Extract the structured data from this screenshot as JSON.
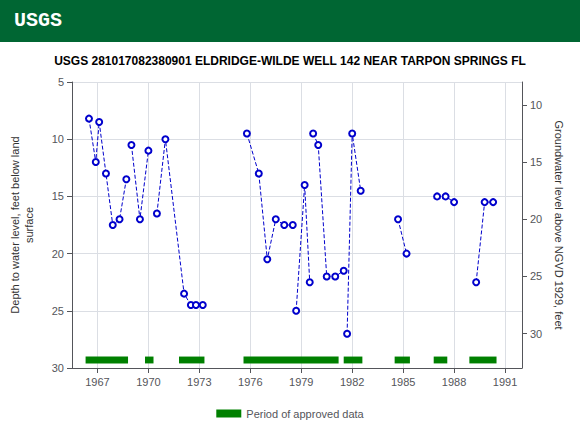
{
  "chart_data": {
    "type": "line",
    "title": "USGS 281017082380901 ELDRIDGE-WILDE WELL 142 NEAR TARPON SPRINGS FL",
    "annotations": [
      {
        "text": "USGS",
        "color": "#006633"
      }
    ],
    "ylabel": "Depth to water level, feet below land\nsurface",
    "y2label": "Groundwater level above NGVD 1929, feet",
    "xlim": [
      1965.5,
      1992
    ],
    "xticks": [
      1967,
      1970,
      1973,
      1976,
      1979,
      1982,
      1985,
      1988,
      1991
    ],
    "ylim": [
      30,
      5
    ],
    "yticks": [
      5,
      10,
      15,
      20,
      25,
      30
    ],
    "y2lim": [
      33,
      8
    ],
    "y2ticks": [
      10,
      15,
      20,
      25,
      30
    ],
    "grid": true,
    "legend": "bottom",
    "color": "#0000cc",
    "marker": "circle_open",
    "line_style": "dashed",
    "series": [
      {
        "x": [
          1966.5,
          1966.9,
          1967.1,
          1967.5,
          1967.9,
          1968.3,
          1968.7
        ],
        "values": [
          8.2,
          12.0,
          8.5,
          13.0,
          17.5,
          17.0,
          13.5
        ]
      },
      {
        "x": [
          1969.0,
          1969.5,
          1970.0
        ],
        "values": [
          10.5,
          17.0,
          11.0
        ]
      },
      {
        "x": [
          1970.5,
          1971.0,
          1972.1,
          1972.5
        ],
        "values": [
          16.5,
          10.0,
          23.5,
          24.5
        ]
      },
      {
        "x": [
          1972.8,
          1973.2
        ],
        "values": [
          24.5,
          24.5
        ]
      },
      {
        "x": [
          1975.8,
          1976.5,
          1977.0,
          1977.5,
          1978.0,
          1978.5
        ],
        "values": [
          9.5,
          13.0,
          20.5,
          17.0,
          17.5,
          17.5
        ]
      },
      {
        "x": [
          1978.7,
          1979.2,
          1979.5
        ],
        "values": [
          25.0,
          14.0,
          22.5
        ]
      },
      {
        "x": [
          1979.7,
          1980.0,
          1980.5,
          1981.0,
          1981.5
        ],
        "values": [
          9.5,
          10.5,
          22.0,
          22.0,
          21.5
        ]
      },
      {
        "x": [
          1981.7,
          1982.0,
          1982.5
        ],
        "values": [
          27.0,
          9.5,
          14.5
        ]
      },
      {
        "x": [
          1984.7,
          1985.2
        ],
        "values": [
          17.0,
          20.0
        ]
      },
      {
        "x": [
          1987.0,
          1987.5,
          1988.0
        ],
        "values": [
          15.0,
          15.0,
          15.5
        ]
      },
      {
        "x": [
          1989.3,
          1989.8,
          1990.3
        ],
        "values": [
          22.5,
          15.5,
          15.5
        ]
      }
    ],
    "approved_periods": {
      "name": "Period of approved data",
      "color": "#008000",
      "y": 29.3,
      "height": 0.6,
      "periods": [
        {
          "start": 1966.3,
          "end": 1968.8
        },
        {
          "start": 1969.8,
          "end": 1970.3
        },
        {
          "start": 1971.8,
          "end": 1973.3
        },
        {
          "start": 1975.6,
          "end": 1981.2
        },
        {
          "start": 1981.5,
          "end": 1982.6
        },
        {
          "start": 1984.5,
          "end": 1985.4
        },
        {
          "start": 1986.8,
          "end": 1987.6
        },
        {
          "start": 1988.9,
          "end": 1990.5
        }
      ]
    }
  }
}
